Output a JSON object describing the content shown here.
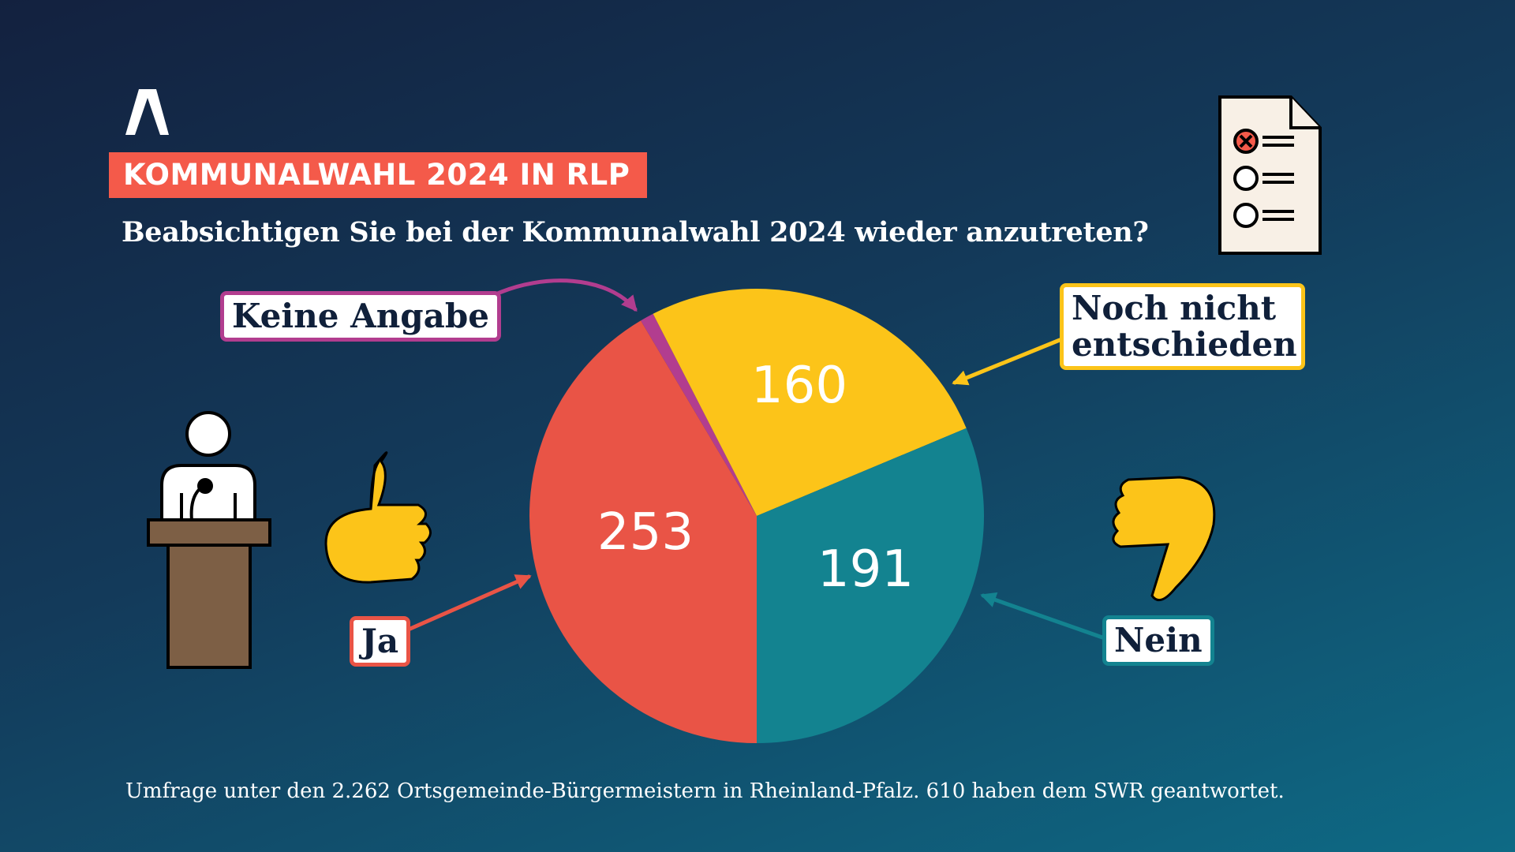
{
  "header": {
    "logo": "ARD",
    "banner": "KOMMUNALWAHL 2024 IN RLP",
    "question": "Beabsichtigen Sie bei der Kommunalwahl 2024 wieder anzutreten?"
  },
  "footnote": "Umfrage unter den 2.262 Ortsgemeinde-Bürgermeistern in Rheinland-Pfalz. 610 haben dem SWR geantwortet.",
  "chart_data": {
    "type": "pie",
    "title": "Beabsichtigen Sie bei der Kommunalwahl 2024 wieder anzutreten?",
    "total": 610,
    "slices": [
      {
        "label": "Keine Angabe",
        "value": 6,
        "color": "#b23d8f",
        "show_value": false
      },
      {
        "label": "Noch nicht entschieden",
        "value": 160,
        "color": "#fcc419"
      },
      {
        "label": "Nein",
        "value": 191,
        "color": "#138390"
      },
      {
        "label": "Ja",
        "value": 253,
        "color": "#e95446"
      }
    ]
  }
}
